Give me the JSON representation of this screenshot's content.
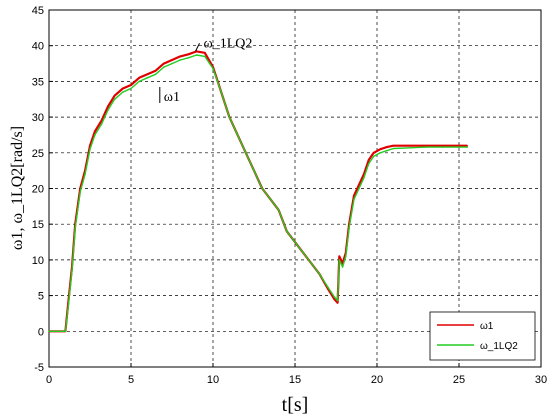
{
  "chart_data": {
    "type": "line",
    "title": "",
    "xlabel": "t[s]",
    "ylabel": "ω1, ω_1LQ2[rad/s]",
    "xlim": [
      0,
      30
    ],
    "ylim": [
      -5,
      45
    ],
    "xticks": [
      "0",
      "5",
      "10",
      "15",
      "20",
      "25",
      "30"
    ],
    "yticks": [
      "-5",
      "0",
      "5",
      "10",
      "15",
      "20",
      "25",
      "30",
      "35",
      "40",
      "45"
    ],
    "grid": true,
    "legend_position": "bottom-right",
    "annotations": [
      {
        "text": "ω1",
        "x": 7.0,
        "y": 34.5
      },
      {
        "text": "ω_1LQ2",
        "x": 9.3,
        "y": 39.5
      }
    ],
    "series": [
      {
        "name": "ω1",
        "color": "#e00000",
        "x": [
          0,
          1.0,
          1.15,
          1.4,
          1.6,
          1.9,
          2.2,
          2.5,
          2.8,
          3.2,
          3.6,
          4.0,
          4.5,
          5.0,
          5.5,
          6.0,
          6.5,
          7.0,
          7.5,
          8.0,
          8.5,
          9.0,
          9.5,
          10.0,
          10.5,
          11.0,
          11.5,
          12.0,
          12.5,
          13.0,
          13.5,
          14.0,
          14.5,
          15.0,
          15.5,
          16.0,
          16.5,
          17.0,
          17.4,
          17.6,
          17.7,
          17.9,
          18.1,
          18.3,
          18.6,
          18.9,
          19.2,
          19.5,
          19.8,
          20.2,
          20.6,
          21.0,
          22.0,
          23.0,
          24.0,
          25.0,
          25.5
        ],
        "y": [
          0,
          0,
          3.5,
          9,
          15,
          20,
          22.5,
          26,
          28,
          29.5,
          31.5,
          33,
          34,
          34.5,
          35.5,
          36,
          36.5,
          37.5,
          38,
          38.5,
          38.8,
          39.2,
          39,
          37,
          33.5,
          30,
          27.5,
          25,
          22.5,
          20,
          18.5,
          17,
          14,
          12.5,
          11,
          9.5,
          8,
          6,
          4.5,
          4,
          10.5,
          9.5,
          11,
          15,
          19,
          20.5,
          22,
          24,
          25,
          25.5,
          25.8,
          26,
          26,
          26,
          26,
          26,
          26
        ]
      },
      {
        "name": "ω_1LQ2",
        "color": "#22cc22",
        "x": [
          0,
          1.0,
          1.15,
          1.4,
          1.6,
          1.9,
          2.2,
          2.5,
          2.8,
          3.2,
          3.6,
          4.0,
          4.5,
          5.0,
          5.5,
          6.0,
          6.5,
          7.0,
          7.5,
          8.0,
          8.5,
          9.0,
          9.5,
          10.0,
          10.5,
          11.0,
          11.5,
          12.0,
          12.5,
          13.0,
          13.5,
          14.0,
          14.5,
          15.0,
          15.5,
          16.0,
          16.5,
          17.0,
          17.4,
          17.6,
          17.7,
          17.9,
          18.1,
          18.3,
          18.6,
          18.9,
          19.2,
          19.5,
          19.8,
          20.2,
          20.6,
          21.0,
          22.0,
          23.0,
          24.0,
          25.0,
          25.5
        ],
        "y": [
          0,
          0,
          3,
          8.5,
          14.5,
          19.5,
          22,
          25.5,
          27.5,
          29,
          31,
          32.5,
          33.5,
          34,
          35,
          35.5,
          36,
          37,
          37.5,
          38,
          38.3,
          38.7,
          38.5,
          36.8,
          33.5,
          30,
          27.5,
          25,
          22.5,
          20,
          18.5,
          17,
          14,
          12.5,
          11,
          9.5,
          8,
          6.2,
          4.8,
          4.3,
          10,
          9,
          10.5,
          14.5,
          18.5,
          20,
          21.5,
          23.5,
          24.5,
          25,
          25.3,
          25.6,
          25.7,
          25.8,
          25.8,
          25.8,
          25.8
        ]
      }
    ]
  }
}
